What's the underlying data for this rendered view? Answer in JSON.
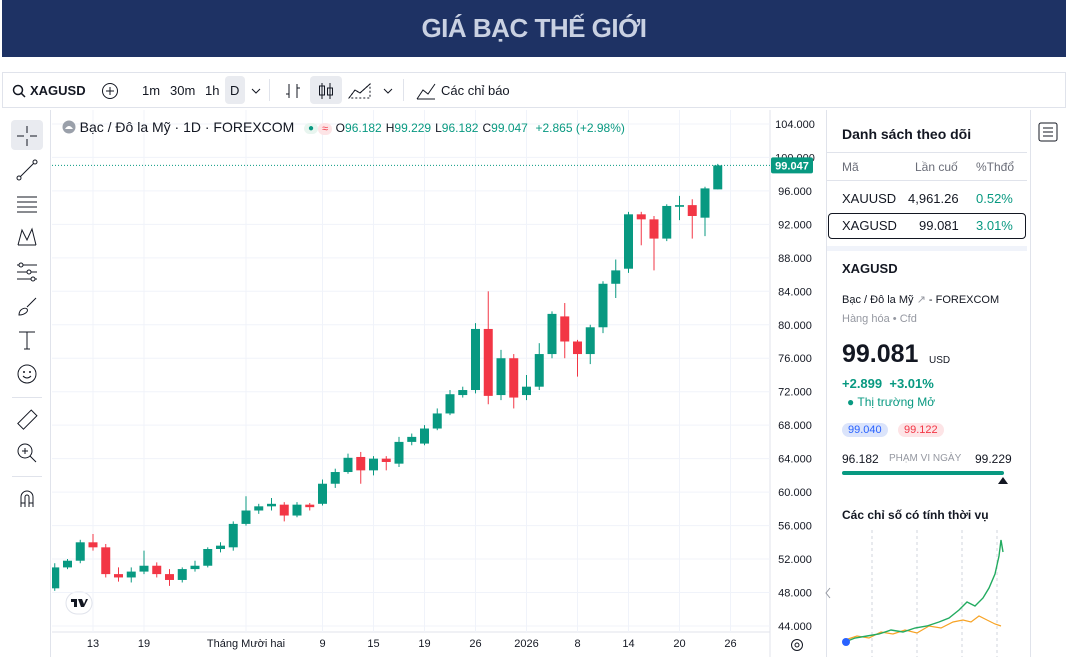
{
  "header": {
    "title": "GIÁ BẠC THẾ GIỚI"
  },
  "toolbar": {
    "symbol": "XAGUSD",
    "intervals": [
      "1m",
      "30m",
      "1h",
      "D"
    ],
    "indicators": "Các chỉ báo"
  },
  "chart_data": {
    "type": "candlestick",
    "legend_title": "Bạc / Đô la Mỹ · 1D · FOREXCOM",
    "ohlc_legend": [
      {
        "key": "O",
        "value": "96.182"
      },
      {
        "key": "H",
        "value": "99.229"
      },
      {
        "key": "L",
        "value": "96.182"
      },
      {
        "key": "C",
        "value": "99.047"
      }
    ],
    "change": "+2.865 (+2.98%)",
    "categories": [
      null,
      null,
      null,
      "13",
      null,
      null,
      null,
      "19",
      null,
      null,
      null,
      null,
      null,
      null,
      null,
      "Tháng Mười hai",
      null,
      null,
      null,
      null,
      null,
      "9",
      null,
      null,
      null,
      "15",
      null,
      null,
      null,
      "19",
      null,
      null,
      null,
      "26",
      null,
      null,
      null,
      "2026",
      null,
      null,
      null,
      "8",
      null,
      null,
      null,
      "14",
      null,
      null,
      null,
      "20",
      null,
      null,
      null,
      "26"
    ],
    "open": [
      48.5,
      51,
      51.8,
      54,
      53.4,
      50.2,
      49.8,
      50.5,
      51.2,
      50.2,
      49.5,
      50.8,
      51.2,
      53.2,
      53.4,
      56.2,
      57.8,
      58.3,
      58.5,
      57.2,
      58.5,
      58.6,
      61,
      62.4,
      64.2,
      62.6,
      64,
      63.4,
      66,
      65.8,
      67.6,
      69.4,
      71.6,
      72.2,
      79.5,
      71.6,
      76,
      71.6,
      72.6,
      76.5,
      81,
      78,
      76.5,
      79.7,
      84.9,
      86.7,
      93.2,
      92.6,
      90.3,
      94.1,
      94.3,
      92.8,
      96.182,
      null
    ],
    "high": [
      51.5,
      52,
      54.3,
      55,
      53.8,
      51,
      51,
      53,
      51.6,
      50.8,
      51,
      51.8,
      53.4,
      54,
      56.5,
      59.5,
      58.6,
      59.3,
      58.8,
      58.8,
      58.7,
      61.5,
      62.8,
      64.6,
      64.8,
      64.3,
      64.3,
      66.6,
      67,
      68,
      70,
      72.2,
      72.6,
      80.2,
      84,
      77,
      76.5,
      74,
      77.8,
      81.6,
      82.6,
      78.2,
      80,
      85.2,
      87.8,
      93.5,
      93.5,
      93,
      94.4,
      95.4,
      95,
      96.5,
      99.229,
      null
    ],
    "low": [
      48.2,
      50.8,
      51.5,
      53,
      49.8,
      49.3,
      49.2,
      50.2,
      49.8,
      48.8,
      49.2,
      50.5,
      51,
      52.8,
      53,
      56,
      57.4,
      57.8,
      56.5,
      57,
      57.8,
      58.4,
      60.5,
      62.2,
      61,
      62,
      62.6,
      63,
      65.6,
      65.6,
      67.4,
      69.2,
      71.3,
      71.8,
      70.5,
      71,
      70,
      71,
      72.2,
      76,
      76,
      73.8,
      75.3,
      79,
      83.2,
      86.2,
      89.5,
      86.5,
      90,
      92.5,
      90.3,
      90.6,
      96.182,
      null
    ],
    "close": [
      51,
      51.8,
      54,
      53.4,
      50.2,
      49.8,
      50.5,
      51.2,
      50.2,
      49.5,
      50.8,
      51.2,
      53.2,
      53.6,
      56.2,
      57.8,
      58.3,
      58.6,
      57.2,
      58.5,
      58.2,
      61,
      62.4,
      64.1,
      62.6,
      64,
      63.6,
      66,
      66.6,
      67.6,
      69.4,
      71.7,
      72.2,
      79.5,
      71.5,
      76,
      71.3,
      72.6,
      76.5,
      81.3,
      78,
      76.5,
      79.7,
      84.9,
      86.5,
      93.2,
      92.6,
      90.3,
      94.2,
      94.3,
      93,
      96.3,
      99.047,
      null
    ],
    "up_color": "#089981",
    "down_color": "#f23645",
    "ylim": [
      43.28,
      105.43
    ],
    "yticks": [
      {
        "value": 44,
        "label": "44.000"
      },
      {
        "value": 48,
        "label": "48.000"
      },
      {
        "value": 52,
        "label": "52.000"
      },
      {
        "value": 56,
        "label": "56.000"
      },
      {
        "value": 60,
        "label": "60.000"
      },
      {
        "value": 64,
        "label": "64.000"
      },
      {
        "value": 68,
        "label": "68.000"
      },
      {
        "value": 72,
        "label": "72.000"
      },
      {
        "value": 76,
        "label": "76.000"
      },
      {
        "value": 80,
        "label": "80.000"
      },
      {
        "value": 84,
        "label": "84.000"
      },
      {
        "value": 88,
        "label": "88.000"
      },
      {
        "value": 92,
        "label": "92.000"
      },
      {
        "value": 96,
        "label": "96.000"
      },
      {
        "value": 100,
        "label": "100.000"
      },
      {
        "value": 104,
        "label": "104.000"
      }
    ],
    "grid": true,
    "last_price": {
      "value": 99.047,
      "label": "99.047"
    }
  },
  "watchlist": {
    "title": "Danh sách theo dõi",
    "columns": [
      "Mã",
      "Lần cuố",
      "%Thđổ"
    ],
    "rows": [
      [
        "XAUUSD",
        "4,961.26",
        "0.52%"
      ],
      [
        "XAGUSD",
        "99.081",
        "3.01%"
      ]
    ]
  },
  "details": {
    "symbol": "XAGUSD",
    "name": "Bạc / Đô la Mỹ",
    "exchange": "FOREXCOM",
    "category": "Hàng hóa",
    "subtype": "Cfd",
    "price": "99.081",
    "currency": "USD",
    "change": "+2.899",
    "change_pct": "+3.01%",
    "status": "Thị trường Mở",
    "bid": "99.040",
    "ask": "99.122",
    "day_low": "96.182",
    "range_label": "PHẠM VI NGÀY",
    "day_high": "99.229",
    "seasonals_title": "Các chỉ số có tính thời vụ"
  }
}
